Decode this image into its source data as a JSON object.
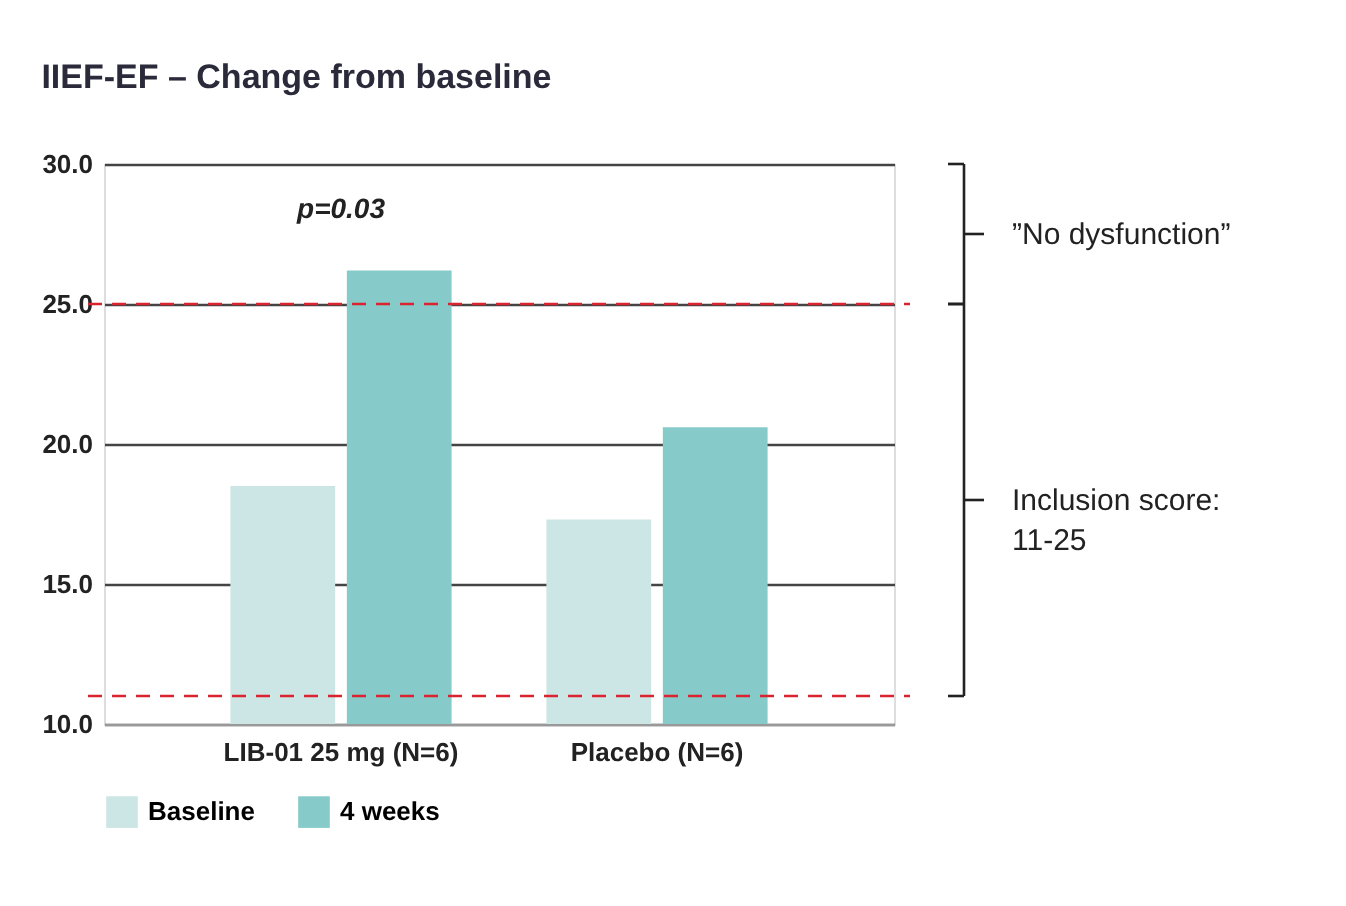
{
  "chart_data": {
    "type": "bar",
    "title": "IIEF-EF – Change from baseline",
    "categories": [
      "LIB-01 25 mg (N=6)",
      "Placebo (N=6)"
    ],
    "series": [
      {
        "name": "Baseline",
        "color": "#cce6e5",
        "values": [
          18.5,
          17.3
        ]
      },
      {
        "name": "4 weeks",
        "color": "#86cbca",
        "values": [
          26.2,
          20.6
        ]
      }
    ],
    "ylim": [
      10,
      30
    ],
    "yticks": [
      {
        "value": 10,
        "label": "10.0"
      },
      {
        "value": 15,
        "label": "15.0"
      },
      {
        "value": 20,
        "label": "20.0"
      },
      {
        "value": 25,
        "label": "25.0"
      },
      {
        "value": 30,
        "label": "30.0"
      }
    ],
    "grid": "y",
    "legend": "bottom",
    "ref_lines": [
      {
        "axis": "y",
        "value": 25,
        "color": "#d9232e",
        "line_style": "dashed"
      },
      {
        "axis": "y",
        "value": 11,
        "color": "#d9232e",
        "line_style": "dashed"
      }
    ],
    "annotations": [
      "p=0.03",
      "”No dysfunction”",
      "Inclusion score: 11-25"
    ]
  }
}
